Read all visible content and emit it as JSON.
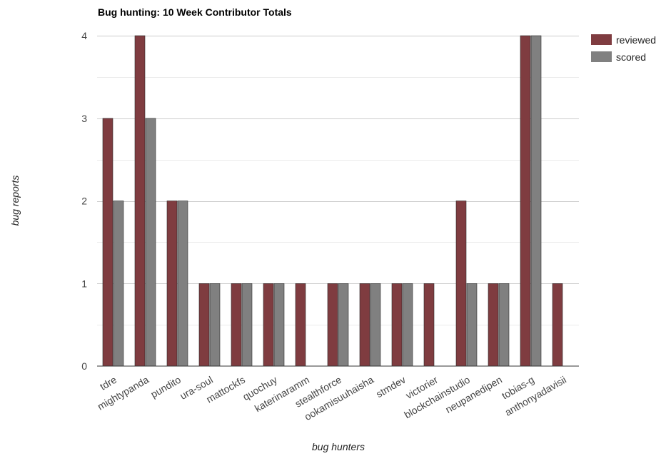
{
  "chart_data": {
    "type": "bar",
    "title": "Bug hunting: 10 Week Contributor Totals",
    "xlabel": "bug hunters",
    "ylabel": "bug reports",
    "ylim": [
      0,
      4
    ],
    "yticks": [
      "0",
      "1",
      "2",
      "3",
      "4"
    ],
    "grid": true,
    "legend_position": "right",
    "categories": [
      "tdre",
      "mightypanda",
      "pundito",
      "ura-soul",
      "mattockfs",
      "quochuy",
      "katerinaramm",
      "stealthforce",
      "ookamisuuhaisha",
      "stmdev",
      "victorier",
      "blockchainstudio",
      "neupanedipen",
      "tobias-g",
      "anthonyadavisii"
    ],
    "series": [
      {
        "name": "reviewed",
        "color": "#7f3c40",
        "values": [
          3,
          4,
          2,
          1,
          1,
          1,
          1,
          1,
          1,
          1,
          1,
          2,
          1,
          4,
          1
        ]
      },
      {
        "name": "scored",
        "color": "#808080",
        "values": [
          2,
          3,
          2,
          1,
          1,
          1,
          0,
          1,
          1,
          1,
          0,
          1,
          1,
          4,
          0
        ]
      }
    ]
  }
}
